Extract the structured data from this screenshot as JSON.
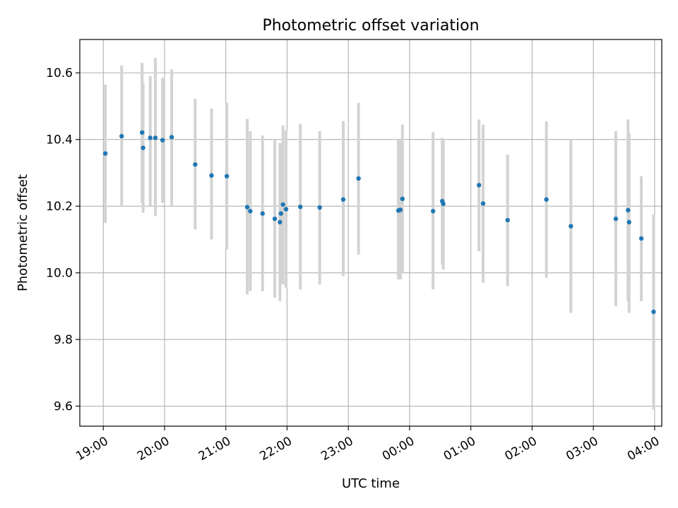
{
  "chart_data": {
    "type": "scatter",
    "title": "Photometric offset variation",
    "xlabel": "UTC time",
    "ylabel": "Photometric offset",
    "xlim": [
      "18:37",
      "04:07"
    ],
    "ylim": [
      9.54,
      10.7
    ],
    "grid": true,
    "x_ticks": [
      "19:00",
      "20:00",
      "21:00",
      "22:00",
      "23:00",
      "00:00",
      "01:00",
      "02:00",
      "03:00",
      "04:00"
    ],
    "y_ticks": [
      9.6,
      9.8,
      10.0,
      10.2,
      10.4,
      10.6
    ],
    "y_tick_labels": [
      "9.6",
      "9.8",
      "10.0",
      "10.2",
      "10.4",
      "10.6"
    ],
    "marker_color": "#1f77b4",
    "errorbar_color": "#d3d3d3",
    "points": [
      {
        "t": "19:02",
        "y": 10.358,
        "lo": 10.15,
        "hi": 10.565
      },
      {
        "t": "19:18",
        "y": 10.41,
        "lo": 10.2,
        "hi": 10.622
      },
      {
        "t": "19:38",
        "y": 10.421,
        "lo": 10.21,
        "hi": 10.63
      },
      {
        "t": "19:39",
        "y": 10.375,
        "lo": 10.18,
        "hi": 10.57
      },
      {
        "t": "19:46",
        "y": 10.405,
        "lo": 10.2,
        "hi": 10.59
      },
      {
        "t": "19:51",
        "y": 10.405,
        "lo": 10.17,
        "hi": 10.645
      },
      {
        "t": "19:58",
        "y": 10.398,
        "lo": 10.21,
        "hi": 10.585
      },
      {
        "t": "20:07",
        "y": 10.407,
        "lo": 10.2,
        "hi": 10.61
      },
      {
        "t": "20:30",
        "y": 10.325,
        "lo": 10.13,
        "hi": 10.522
      },
      {
        "t": "20:46",
        "y": 10.292,
        "lo": 10.1,
        "hi": 10.493
      },
      {
        "t": "21:01",
        "y": 10.29,
        "lo": 10.07,
        "hi": 10.51
      },
      {
        "t": "21:21",
        "y": 10.197,
        "lo": 9.935,
        "hi": 10.462
      },
      {
        "t": "21:24",
        "y": 10.185,
        "lo": 9.945,
        "hi": 10.425
      },
      {
        "t": "21:36",
        "y": 10.178,
        "lo": 9.945,
        "hi": 10.412
      },
      {
        "t": "21:48",
        "y": 10.162,
        "lo": 9.925,
        "hi": 10.4
      },
      {
        "t": "21:53",
        "y": 10.152,
        "lo": 9.915,
        "hi": 10.39
      },
      {
        "t": "21:54",
        "y": 10.178,
        "lo": 9.97,
        "hi": 10.39
      },
      {
        "t": "21:56",
        "y": 10.205,
        "lo": 9.965,
        "hi": 10.442
      },
      {
        "t": "21:59",
        "y": 10.191,
        "lo": 9.955,
        "hi": 10.428
      },
      {
        "t": "22:13",
        "y": 10.198,
        "lo": 9.95,
        "hi": 10.447
      },
      {
        "t": "22:32",
        "y": 10.196,
        "lo": 9.965,
        "hi": 10.425
      },
      {
        "t": "22:55",
        "y": 10.22,
        "lo": 9.99,
        "hi": 10.455
      },
      {
        "t": "23:10",
        "y": 10.283,
        "lo": 10.055,
        "hi": 10.51
      },
      {
        "t": "23:49",
        "y": 10.187,
        "lo": 9.98,
        "hi": 10.398
      },
      {
        "t": "23:51",
        "y": 10.189,
        "lo": 9.98,
        "hi": 10.398
      },
      {
        "t": "23:53",
        "y": 10.222,
        "lo": 10.0,
        "hi": 10.445
      },
      {
        "t": "00:23",
        "y": 10.185,
        "lo": 9.95,
        "hi": 10.422
      },
      {
        "t": "00:32",
        "y": 10.215,
        "lo": 10.025,
        "hi": 10.405
      },
      {
        "t": "00:33",
        "y": 10.207,
        "lo": 10.01,
        "hi": 10.4
      },
      {
        "t": "01:08",
        "y": 10.263,
        "lo": 10.065,
        "hi": 10.46
      },
      {
        "t": "01:12",
        "y": 10.208,
        "lo": 9.97,
        "hi": 10.445
      },
      {
        "t": "01:36",
        "y": 10.158,
        "lo": 9.96,
        "hi": 10.355
      },
      {
        "t": "02:14",
        "y": 10.22,
        "lo": 9.985,
        "hi": 10.455
      },
      {
        "t": "02:38",
        "y": 10.14,
        "lo": 9.88,
        "hi": 10.4
      },
      {
        "t": "03:22",
        "y": 10.162,
        "lo": 9.9,
        "hi": 10.425
      },
      {
        "t": "03:34",
        "y": 10.188,
        "lo": 9.915,
        "hi": 10.46
      },
      {
        "t": "03:35",
        "y": 10.152,
        "lo": 9.88,
        "hi": 10.42
      },
      {
        "t": "03:47",
        "y": 10.103,
        "lo": 9.915,
        "hi": 10.29
      },
      {
        "t": "03:59",
        "y": 9.883,
        "lo": 9.59,
        "hi": 10.175
      }
    ]
  }
}
